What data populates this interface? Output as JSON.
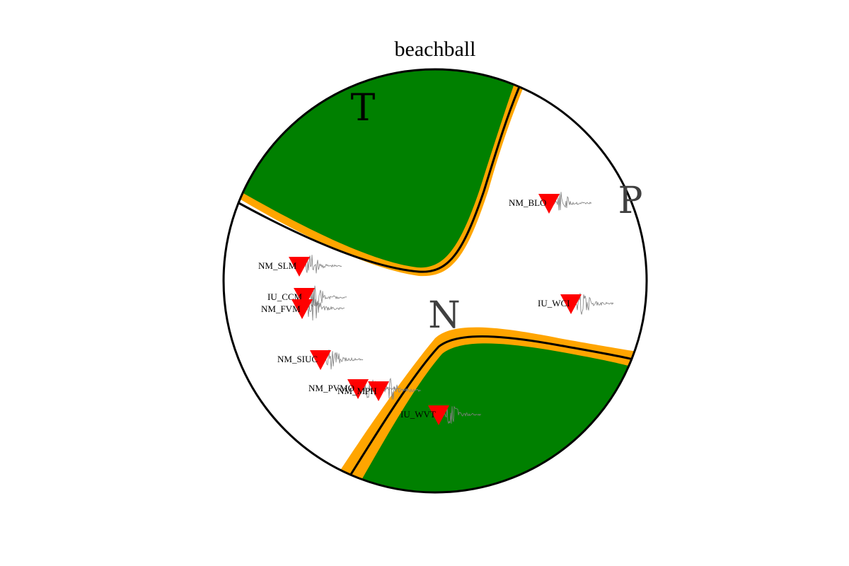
{
  "title": "beachball",
  "axes": {
    "T": "T",
    "P": "P",
    "N": "N"
  },
  "colors": {
    "compressional": "#008000",
    "uncertainty": "#FFA500",
    "nodal_line": "#000000",
    "station": "#FF0000",
    "waveform": "#808080",
    "outline": "#000000",
    "axis_letter_T": "#000000",
    "axis_letter_PN": "#404040"
  },
  "stations": [
    {
      "name": "NM_BLO",
      "label": "NM_BLO"
    },
    {
      "name": "NM_SLM",
      "label": "NM_SLM"
    },
    {
      "name": "IU_CCM",
      "label": "IU_CCM"
    },
    {
      "name": "NM_FVM",
      "label": "NM_FVM"
    },
    {
      "name": "IU_WCI",
      "label": "IU_WCI"
    },
    {
      "name": "NM_SIUC",
      "label": "NM_SIUC"
    },
    {
      "name": "NM_PVMO",
      "label": "NM_PVMO"
    },
    {
      "name": "NM_MPH",
      "label": "NM_MPH"
    },
    {
      "name": "IU_WVT",
      "label": "IU_WVT"
    }
  ]
}
